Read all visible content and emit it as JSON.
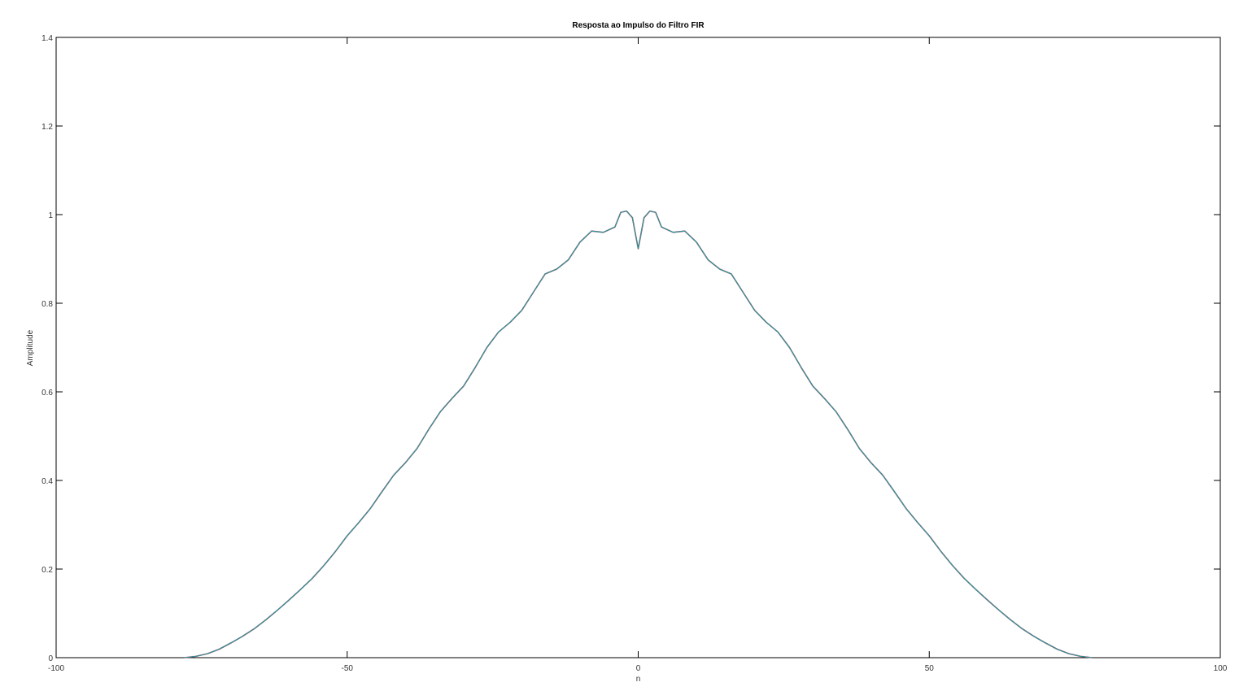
{
  "chart_data": {
    "type": "line",
    "title": "Resposta ao Impulso do Filtro FIR",
    "xlabel": "n",
    "ylabel": "Amplitude",
    "xlim": [
      -100,
      100
    ],
    "ylim": [
      0,
      1.4
    ],
    "xticks": [
      -100,
      -50,
      0,
      50,
      100
    ],
    "xtick_labels": [
      "-100",
      "-50",
      "0",
      "50",
      "100"
    ],
    "yticks": [
      0,
      0.2,
      0.4,
      0.6,
      0.8,
      1,
      1.2,
      1.4
    ],
    "ytick_labels": [
      "0",
      "0.2",
      "0.4",
      "0.6",
      "0.8",
      "1",
      "1.2",
      "1.4"
    ],
    "grid": false,
    "series": [
      {
        "color": "#cc3344",
        "x": [
          -78,
          -76,
          -74,
          -72,
          -70,
          -68,
          -66,
          -64,
          -62,
          -60,
          -58,
          -56,
          -54,
          -52,
          -50,
          -48,
          -46,
          -44,
          -42,
          -40,
          -38,
          -36,
          -34,
          -32,
          -30,
          -28,
          -26,
          -24,
          -22,
          -20,
          -18,
          -16,
          -14,
          -12,
          -10,
          -8,
          -6,
          -4,
          -3,
          -2,
          -1,
          0,
          1,
          2,
          3,
          4,
          6,
          8,
          10,
          12,
          14,
          16,
          18,
          20,
          22,
          24,
          26,
          28,
          30,
          32,
          34,
          36,
          38,
          40,
          42,
          44,
          46,
          48,
          50,
          52,
          54,
          56,
          58,
          60,
          62,
          64,
          66,
          68,
          70,
          72,
          74,
          76,
          78
        ],
        "y": [
          0.0,
          0.003,
          0.009,
          0.019,
          0.033,
          0.048,
          0.065,
          0.085,
          0.107,
          0.13,
          0.154,
          0.179,
          0.208,
          0.24,
          0.275,
          0.305,
          0.337,
          0.375,
          0.412,
          0.44,
          0.472,
          0.515,
          0.555,
          0.585,
          0.613,
          0.655,
          0.7,
          0.735,
          0.757,
          0.784,
          0.825,
          0.866,
          0.877,
          0.898,
          0.938,
          0.963,
          0.96,
          0.972,
          1.005,
          1.008,
          0.993,
          0.923,
          0.993,
          1.008,
          1.005,
          0.972,
          0.96,
          0.963,
          0.938,
          0.898,
          0.877,
          0.866,
          0.825,
          0.784,
          0.757,
          0.735,
          0.7,
          0.655,
          0.613,
          0.585,
          0.555,
          0.515,
          0.472,
          0.44,
          0.412,
          0.375,
          0.337,
          0.305,
          0.275,
          0.24,
          0.208,
          0.179,
          0.154,
          0.13,
          0.107,
          0.085,
          0.065,
          0.048,
          0.033,
          0.019,
          0.009,
          0.003,
          0.0
        ]
      },
      {
        "color": "#1aa0a8",
        "x": [
          -78,
          -76,
          -74,
          -72,
          -70,
          -68,
          -66,
          -64,
          -62,
          -60,
          -58,
          -56,
          -54,
          -52,
          -50,
          -48,
          -46,
          -44,
          -42,
          -40,
          -38,
          -36,
          -34,
          -32,
          -30,
          -28,
          -26,
          -24,
          -22,
          -20,
          -18,
          -16,
          -14,
          -12,
          -10,
          -8,
          -6,
          -4,
          -3,
          -2,
          -1,
          0,
          1,
          2,
          3,
          4,
          6,
          8,
          10,
          12,
          14,
          16,
          18,
          20,
          22,
          24,
          26,
          28,
          30,
          32,
          34,
          36,
          38,
          40,
          42,
          44,
          46,
          48,
          50,
          52,
          54,
          56,
          58,
          60,
          62,
          64,
          66,
          68,
          70,
          72,
          74,
          76,
          78
        ],
        "y": [
          0.0,
          0.003,
          0.009,
          0.019,
          0.033,
          0.048,
          0.065,
          0.085,
          0.107,
          0.13,
          0.154,
          0.179,
          0.208,
          0.24,
          0.275,
          0.305,
          0.337,
          0.375,
          0.412,
          0.44,
          0.472,
          0.515,
          0.555,
          0.585,
          0.613,
          0.655,
          0.7,
          0.735,
          0.757,
          0.784,
          0.825,
          0.866,
          0.877,
          0.898,
          0.938,
          0.963,
          0.96,
          0.972,
          1.005,
          1.008,
          0.993,
          0.923,
          0.993,
          1.008,
          1.005,
          0.972,
          0.96,
          0.963,
          0.938,
          0.898,
          0.877,
          0.866,
          0.825,
          0.784,
          0.757,
          0.735,
          0.7,
          0.655,
          0.613,
          0.585,
          0.555,
          0.515,
          0.472,
          0.44,
          0.412,
          0.375,
          0.337,
          0.305,
          0.275,
          0.24,
          0.208,
          0.179,
          0.154,
          0.13,
          0.107,
          0.085,
          0.065,
          0.048,
          0.033,
          0.019,
          0.009,
          0.003,
          0.0
        ]
      }
    ]
  }
}
